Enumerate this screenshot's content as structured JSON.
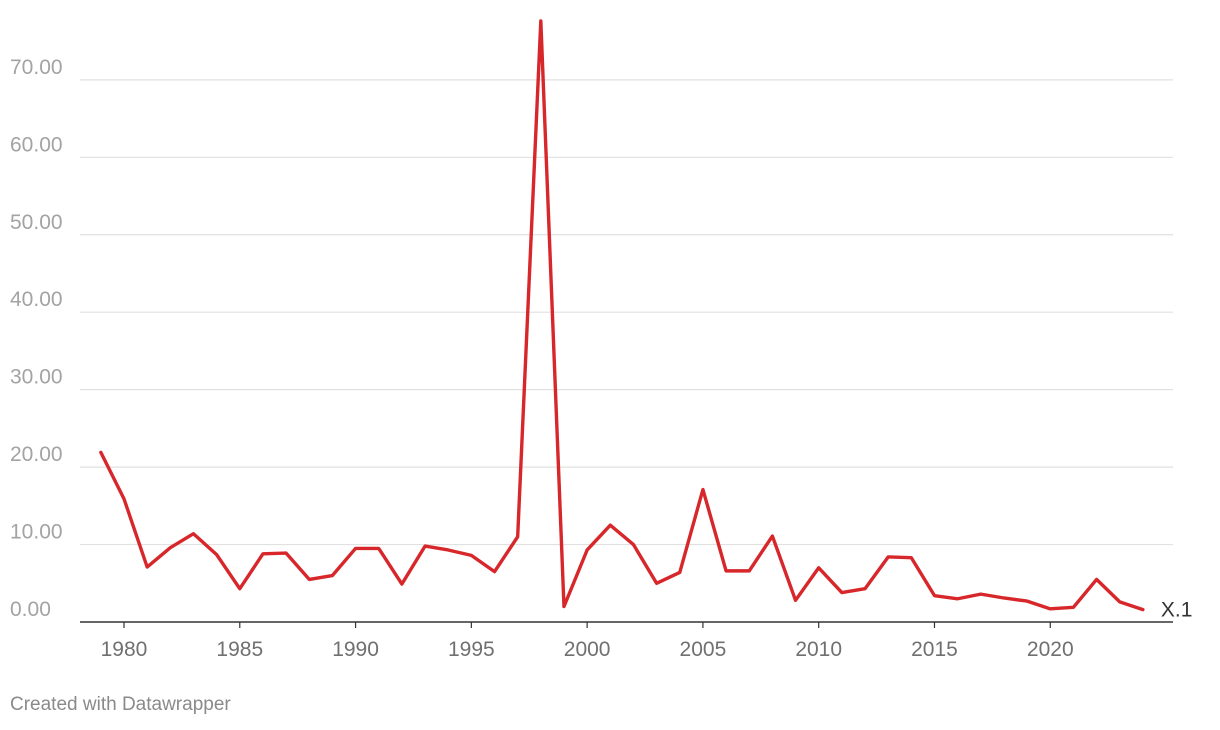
{
  "chart_data": {
    "type": "line",
    "title": "",
    "xlabel": "",
    "ylabel": "",
    "x": [
      1979,
      1980,
      1981,
      1982,
      1983,
      1984,
      1985,
      1986,
      1987,
      1988,
      1989,
      1990,
      1991,
      1992,
      1993,
      1994,
      1995,
      1996,
      1997,
      1998,
      1999,
      2000,
      2001,
      2002,
      2003,
      2004,
      2005,
      2006,
      2007,
      2008,
      2009,
      2010,
      2011,
      2012,
      2013,
      2014,
      2015,
      2016,
      2017,
      2018,
      2019,
      2020,
      2021,
      2022,
      2023,
      2024
    ],
    "xlim": [
      1978.1,
      2025.3
    ],
    "ylim": [
      0,
      77.6
    ],
    "x_ticks": [
      "1980",
      "1985",
      "1990",
      "1995",
      "2000",
      "2005",
      "2010",
      "2015",
      "2020"
    ],
    "y_ticks": [
      "0.00",
      "10.00",
      "20.00",
      "30.00",
      "40.00",
      "50.00",
      "60.00",
      "70.00"
    ],
    "grid": true,
    "series": [
      {
        "name": "X.1",
        "color": "#d7272b",
        "values": [
          21.9,
          15.9,
          7.1,
          9.6,
          11.4,
          8.7,
          4.3,
          8.8,
          8.9,
          5.5,
          6.0,
          9.5,
          9.5,
          4.9,
          9.8,
          9.3,
          8.6,
          6.5,
          11.0,
          77.6,
          2.0,
          9.3,
          12.5,
          10.0,
          5.0,
          6.4,
          17.1,
          6.6,
          6.6,
          11.1,
          2.8,
          7.0,
          3.8,
          4.3,
          8.4,
          8.3,
          3.4,
          3.0,
          3.6,
          3.1,
          2.7,
          1.7,
          1.9,
          5.5,
          2.6,
          1.6
        ]
      }
    ],
    "colors": {
      "grid": "#e1e1e1",
      "baseline": "#333333"
    }
  },
  "footer": {
    "credit": "Created with Datawrapper"
  }
}
